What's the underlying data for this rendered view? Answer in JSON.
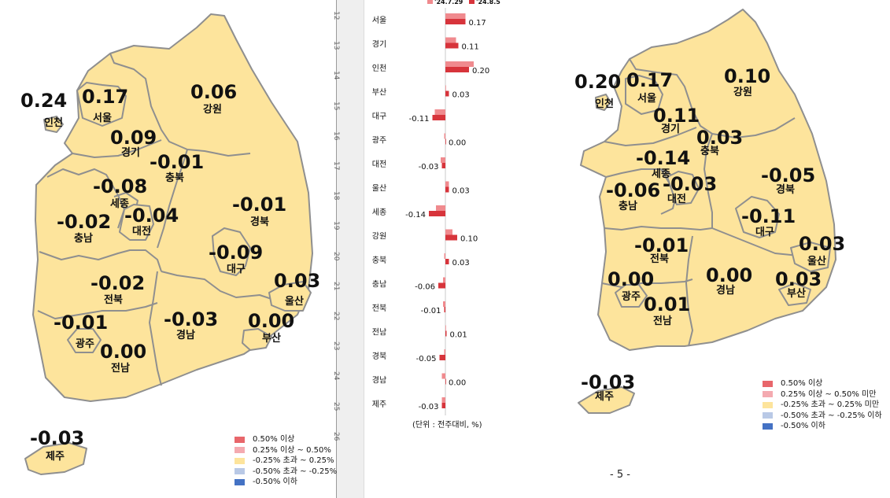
{
  "colors": {
    "map_fill": "#fde49c",
    "map_stroke": "#8f8f8f",
    "bar_prev": "#f08a8e",
    "bar_curr": "#d7343b",
    "legend": [
      "#e8666b",
      "#f4aab0",
      "#fde49c",
      "#b9c9e6",
      "#4472c4"
    ]
  },
  "left_map": {
    "regions": [
      {
        "name": "인천",
        "value": "0.24"
      },
      {
        "name": "서울",
        "value": "0.17"
      },
      {
        "name": "강원",
        "value": "0.06"
      },
      {
        "name": "경기",
        "value": "0.09"
      },
      {
        "name": "충북",
        "value": "-0.01"
      },
      {
        "name": "세종",
        "value": "-0.08"
      },
      {
        "name": "대전",
        "value": "-0.04"
      },
      {
        "name": "충남",
        "value": "-0.02"
      },
      {
        "name": "경북",
        "value": "-0.01"
      },
      {
        "name": "대구",
        "value": "-0.09"
      },
      {
        "name": "울산",
        "value": "0.03"
      },
      {
        "name": "전북",
        "value": "-0.02"
      },
      {
        "name": "광주",
        "value": "-0.01"
      },
      {
        "name": "경남",
        "value": "-0.03"
      },
      {
        "name": "부산",
        "value": "0.00"
      },
      {
        "name": "전남",
        "value": "0.00"
      },
      {
        "name": "제주",
        "value": "-0.03"
      }
    ],
    "legend": [
      "0.50% 이상",
      "0.25% 이상 ~ 0.50%",
      "-0.25% 초과 ~ 0.25%",
      "-0.50% 초과 ~ -0.25%",
      "-0.50% 이하"
    ]
  },
  "right_map": {
    "regions": [
      {
        "name": "인천",
        "value": "0.20"
      },
      {
        "name": "서울",
        "value": "0.17"
      },
      {
        "name": "강원",
        "value": "0.10"
      },
      {
        "name": "경기",
        "value": "0.11"
      },
      {
        "name": "충북",
        "value": "0.03"
      },
      {
        "name": "세종",
        "value": "-0.14"
      },
      {
        "name": "충남",
        "value": "-0.06"
      },
      {
        "name": "대전",
        "value": "-0.03"
      },
      {
        "name": "경북",
        "value": "-0.05"
      },
      {
        "name": "대구",
        "value": "-0.11"
      },
      {
        "name": "전북",
        "value": "-0.01"
      },
      {
        "name": "울산",
        "value": "0.03"
      },
      {
        "name": "광주",
        "value": "0.00"
      },
      {
        "name": "경남",
        "value": "0.00"
      },
      {
        "name": "부산",
        "value": "0.03"
      },
      {
        "name": "전남",
        "value": "0.01"
      },
      {
        "name": "제주",
        "value": "-0.03"
      }
    ],
    "legend": [
      "0.50% 이상",
      "0.25% 이상 ~ 0.50% 미만",
      "-0.25% 초과 ~ 0.25% 미만",
      "-0.50% 초과 ~ -0.25% 이하",
      "-0.50% 이하"
    ]
  },
  "ruler_ticks": [
    "12",
    "13",
    "14",
    "15",
    "16",
    "17",
    "18",
    "19",
    "20",
    "21",
    "22",
    "23",
    "24",
    "25",
    "26"
  ],
  "chart_data": {
    "type": "bar",
    "legend": [
      "'24.7.29",
      "'24.8.5"
    ],
    "categories": [
      "서울",
      "경기",
      "인천",
      "부산",
      "대구",
      "광주",
      "대전",
      "울산",
      "세종",
      "강원",
      "충북",
      "충남",
      "전북",
      "전남",
      "경북",
      "경남",
      "제주"
    ],
    "series": [
      {
        "name": "'24.7.29",
        "values": [
          0.17,
          0.09,
          0.24,
          0.0,
          -0.09,
          -0.01,
          -0.04,
          0.03,
          -0.08,
          0.06,
          -0.01,
          -0.02,
          -0.02,
          0.0,
          -0.01,
          -0.03,
          -0.03
        ]
      },
      {
        "name": "'24.8.5",
        "values": [
          0.17,
          0.11,
          0.2,
          0.03,
          -0.11,
          0.0,
          -0.03,
          0.03,
          -0.14,
          0.1,
          0.03,
          -0.06,
          -0.01,
          0.01,
          -0.05,
          0.0,
          -0.03
        ]
      }
    ],
    "data_labels": [
      "0.17",
      "0.11",
      "0.20",
      "0.03",
      "-0.11",
      "0.00",
      "-0.03",
      "0.03",
      "-0.14",
      "0.10",
      "0.03",
      "-0.06",
      "-0.01",
      "0.01",
      "-0.05",
      "0.00",
      "-0.03"
    ],
    "unit_note": "(단위 : 전주대비, %)"
  },
  "page_number": "- 5 -"
}
